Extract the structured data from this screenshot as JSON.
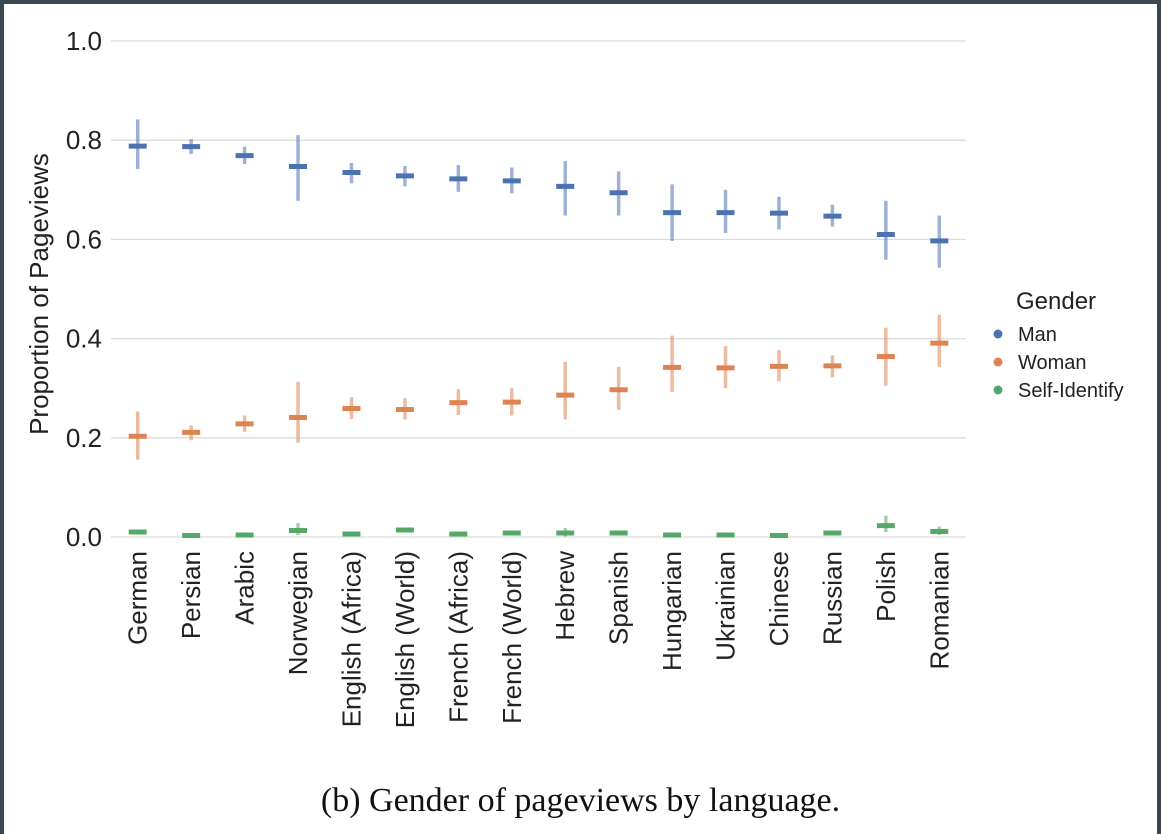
{
  "caption": "(b) Gender of pageviews by language.",
  "chart_data": {
    "type": "scatter",
    "ylabel": "Proportion of Pageviews",
    "xlabel": "",
    "ylim": [
      0.0,
      1.0
    ],
    "yticks": [
      "0.0",
      "0.2",
      "0.4",
      "0.6",
      "0.8",
      "1.0"
    ],
    "grid": "horizontal",
    "legend_title": "Gender",
    "legend_position": "right",
    "categories": [
      "German",
      "Persian",
      "Arabic",
      "Norwegian",
      "English (Africa)",
      "English (World)",
      "French (Africa)",
      "French (World)",
      "Hebrew",
      "Spanish",
      "Hungarian",
      "Ukrainian",
      "Chinese",
      "Russian",
      "Polish",
      "Romanian"
    ],
    "series": [
      {
        "name": "Man",
        "color": "#4c72b0",
        "values": [
          0.788,
          0.787,
          0.769,
          0.747,
          0.735,
          0.728,
          0.722,
          0.718,
          0.707,
          0.694,
          0.654,
          0.654,
          0.653,
          0.647,
          0.61,
          0.597
        ],
        "lower": [
          0.742,
          0.772,
          0.752,
          0.678,
          0.713,
          0.707,
          0.696,
          0.693,
          0.648,
          0.648,
          0.597,
          0.613,
          0.62,
          0.626,
          0.559,
          0.543
        ],
        "upper": [
          0.842,
          0.802,
          0.787,
          0.81,
          0.754,
          0.748,
          0.75,
          0.745,
          0.758,
          0.737,
          0.711,
          0.7,
          0.686,
          0.67,
          0.678,
          0.648
        ]
      },
      {
        "name": "Woman",
        "color": "#dd8452",
        "values": [
          0.203,
          0.211,
          0.228,
          0.241,
          0.259,
          0.257,
          0.271,
          0.272,
          0.286,
          0.297,
          0.342,
          0.341,
          0.344,
          0.345,
          0.364,
          0.391
        ],
        "lower": [
          0.156,
          0.195,
          0.212,
          0.19,
          0.238,
          0.237,
          0.246,
          0.245,
          0.237,
          0.256,
          0.292,
          0.3,
          0.314,
          0.322,
          0.305,
          0.343
        ],
        "upper": [
          0.253,
          0.225,
          0.245,
          0.313,
          0.282,
          0.28,
          0.298,
          0.3,
          0.353,
          0.343,
          0.406,
          0.385,
          0.377,
          0.366,
          0.422,
          0.448
        ]
      },
      {
        "name": "Self-Identify",
        "color": "#55a868",
        "values": [
          0.01,
          0.003,
          0.004,
          0.013,
          0.006,
          0.014,
          0.006,
          0.008,
          0.008,
          0.008,
          0.004,
          0.004,
          0.003,
          0.008,
          0.023,
          0.011
        ],
        "lower": [
          0.006,
          0.001,
          0.002,
          0.004,
          0.003,
          0.01,
          0.003,
          0.005,
          0.001,
          0.004,
          0.002,
          0.002,
          0.001,
          0.005,
          0.01,
          0.004
        ],
        "upper": [
          0.014,
          0.005,
          0.006,
          0.028,
          0.01,
          0.018,
          0.01,
          0.012,
          0.018,
          0.012,
          0.006,
          0.006,
          0.005,
          0.012,
          0.043,
          0.021
        ]
      }
    ]
  }
}
